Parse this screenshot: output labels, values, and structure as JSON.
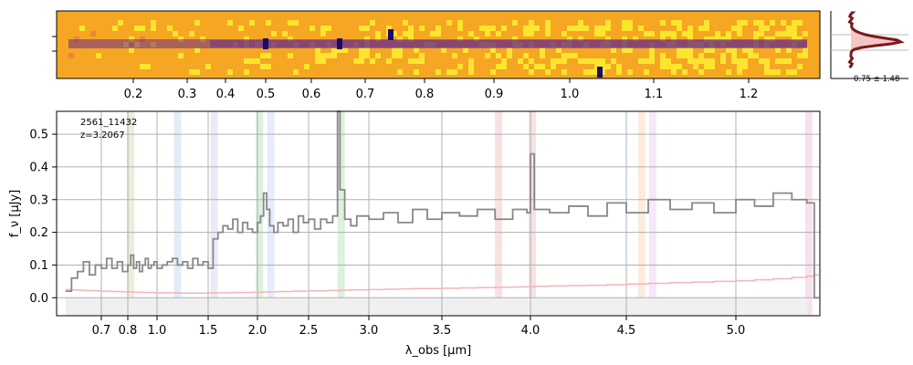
{
  "chart_data": [
    {
      "type": "heatmap",
      "panel": "2D spectrum",
      "colormap": "plasma (inverted)",
      "colors": {
        "background": "#f5a623",
        "trace": "#6a2a8a",
        "dark": "#1a0b6e",
        "noise": "#fcf030"
      },
      "emission_lines_um": [
        0.5,
        0.655,
        0.745,
        1.04
      ],
      "top_axis_ticks": [
        "0.2",
        "0.3",
        "0.4",
        "0.5",
        "0.6",
        "0.7",
        "0.8",
        "0.9",
        "1.0",
        "1.1",
        "1.2"
      ]
    },
    {
      "type": "line",
      "panel": "spatial profile",
      "annotation": "0.75 ± 1.48",
      "colors": {
        "line": "#7a1b1b",
        "fill": "#f6c5c5"
      }
    },
    {
      "type": "line",
      "panel": "1D spectrum",
      "xlabel": "λ_obs [μm]",
      "ylabel": "f_ν [μJy]",
      "xlim": [
        0.55,
        5.45
      ],
      "ylim": [
        -0.055,
        0.57
      ],
      "x_scale": "nonlinear (pixel)",
      "grid": true,
      "object_id": "2561_11432",
      "redshift": "z=3.2067",
      "x_ticks": [
        "0.7",
        "0.8",
        "1.0",
        "1.5",
        "2.0",
        "2.5",
        "3.0",
        "3.5",
        "4.0",
        "4.5",
        "5.0"
      ],
      "y_ticks": [
        "0.0",
        "0.1",
        "0.2",
        "0.3",
        "0.4",
        "0.5"
      ],
      "x": [
        0.58,
        0.6,
        0.62,
        0.64,
        0.66,
        0.68,
        0.7,
        0.72,
        0.74,
        0.76,
        0.78,
        0.8,
        0.82,
        0.84,
        0.86,
        0.88,
        0.9,
        0.92,
        0.94,
        0.96,
        0.98,
        1.0,
        1.05,
        1.1,
        1.15,
        1.2,
        1.25,
        1.3,
        1.35,
        1.4,
        1.45,
        1.5,
        1.55,
        1.6,
        1.65,
        1.7,
        1.75,
        1.8,
        1.85,
        1.9,
        1.95,
        2.0,
        2.03,
        2.06,
        2.09,
        2.12,
        2.16,
        2.2,
        2.25,
        2.3,
        2.35,
        2.4,
        2.45,
        2.5,
        2.55,
        2.6,
        2.65,
        2.7,
        2.74,
        2.76,
        2.8,
        2.85,
        2.9,
        3.0,
        3.1,
        3.2,
        3.3,
        3.4,
        3.5,
        3.6,
        3.7,
        3.8,
        3.9,
        3.98,
        4.0,
        4.02,
        4.1,
        4.2,
        4.3,
        4.4,
        4.5,
        4.6,
        4.7,
        4.8,
        4.9,
        5.0,
        5.1,
        5.2,
        5.3,
        5.38,
        5.42
      ],
      "series": [
        {
          "values": [
            0.02,
            0.06,
            0.08,
            0.11,
            0.07,
            0.1,
            0.09,
            0.12,
            0.09,
            0.11,
            0.08,
            0.1,
            0.13,
            0.09,
            0.11,
            0.08,
            0.1,
            0.12,
            0.09,
            0.1,
            0.11,
            0.09,
            0.1,
            0.11,
            0.12,
            0.1,
            0.11,
            0.09,
            0.12,
            0.1,
            0.11,
            0.09,
            0.18,
            0.2,
            0.22,
            0.21,
            0.24,
            0.2,
            0.23,
            0.21,
            0.2,
            0.23,
            0.25,
            0.32,
            0.27,
            0.22,
            0.2,
            0.23,
            0.22,
            0.24,
            0.2,
            0.25,
            0.23,
            0.24,
            0.21,
            0.24,
            0.23,
            0.25,
            0.57,
            0.33,
            0.24,
            0.22,
            0.25,
            0.24,
            0.26,
            0.23,
            0.27,
            0.24,
            0.26,
            0.25,
            0.27,
            0.24,
            0.27,
            0.26,
            0.44,
            0.27,
            0.26,
            0.28,
            0.25,
            0.29,
            0.26,
            0.3,
            0.27,
            0.29,
            0.26,
            0.3,
            0.28,
            0.32,
            0.3,
            0.29,
            0.0
          ],
          "color": "#888888"
        },
        {
          "values": [
            0.025,
            0.024,
            0.023,
            0.022,
            0.022,
            0.021,
            0.02,
            0.02,
            0.019,
            0.019,
            0.018,
            0.018,
            0.018,
            0.017,
            0.017,
            0.017,
            0.016,
            0.016,
            0.016,
            0.016,
            0.015,
            0.015,
            0.015,
            0.015,
            0.015,
            0.014,
            0.014,
            0.014,
            0.014,
            0.014,
            0.014,
            0.014,
            0.015,
            0.015,
            0.015,
            0.015,
            0.016,
            0.016,
            0.016,
            0.016,
            0.017,
            0.017,
            0.017,
            0.018,
            0.018,
            0.018,
            0.018,
            0.019,
            0.019,
            0.019,
            0.02,
            0.02,
            0.02,
            0.021,
            0.021,
            0.021,
            0.022,
            0.022,
            0.022,
            0.023,
            0.023,
            0.024,
            0.024,
            0.025,
            0.026,
            0.027,
            0.028,
            0.028,
            0.029,
            0.03,
            0.031,
            0.032,
            0.033,
            0.034,
            0.034,
            0.035,
            0.036,
            0.037,
            0.038,
            0.04,
            0.042,
            0.044,
            0.046,
            0.048,
            0.05,
            0.052,
            0.055,
            0.058,
            0.062,
            0.066,
            0.07
          ],
          "color": "#f5b5b5"
        }
      ],
      "colors": {
        "spectrum": "#888888",
        "uncertainty": "#f5b5b5",
        "zero_band": "#f0f0f0"
      },
      "line_bands_um": [
        {
          "x": 0.82,
          "color": "#c8c088"
        },
        {
          "x": 1.2,
          "color": "#a0c4f0"
        },
        {
          "x": 1.56,
          "color": "#c0b8e8"
        },
        {
          "x": 2.02,
          "color": "#90d090"
        },
        {
          "x": 2.13,
          "color": "#a8c0f0"
        },
        {
          "x": 2.77,
          "color": "#90d090"
        },
        {
          "x": 3.82,
          "color": "#e0a0a0"
        },
        {
          "x": 4.01,
          "color": "#e0a0a0"
        },
        {
          "x": 4.57,
          "color": "#f5c090"
        },
        {
          "x": 4.62,
          "color": "#e0b0f0"
        },
        {
          "x": 5.39,
          "color": "#e0a0c8"
        }
      ]
    }
  ]
}
